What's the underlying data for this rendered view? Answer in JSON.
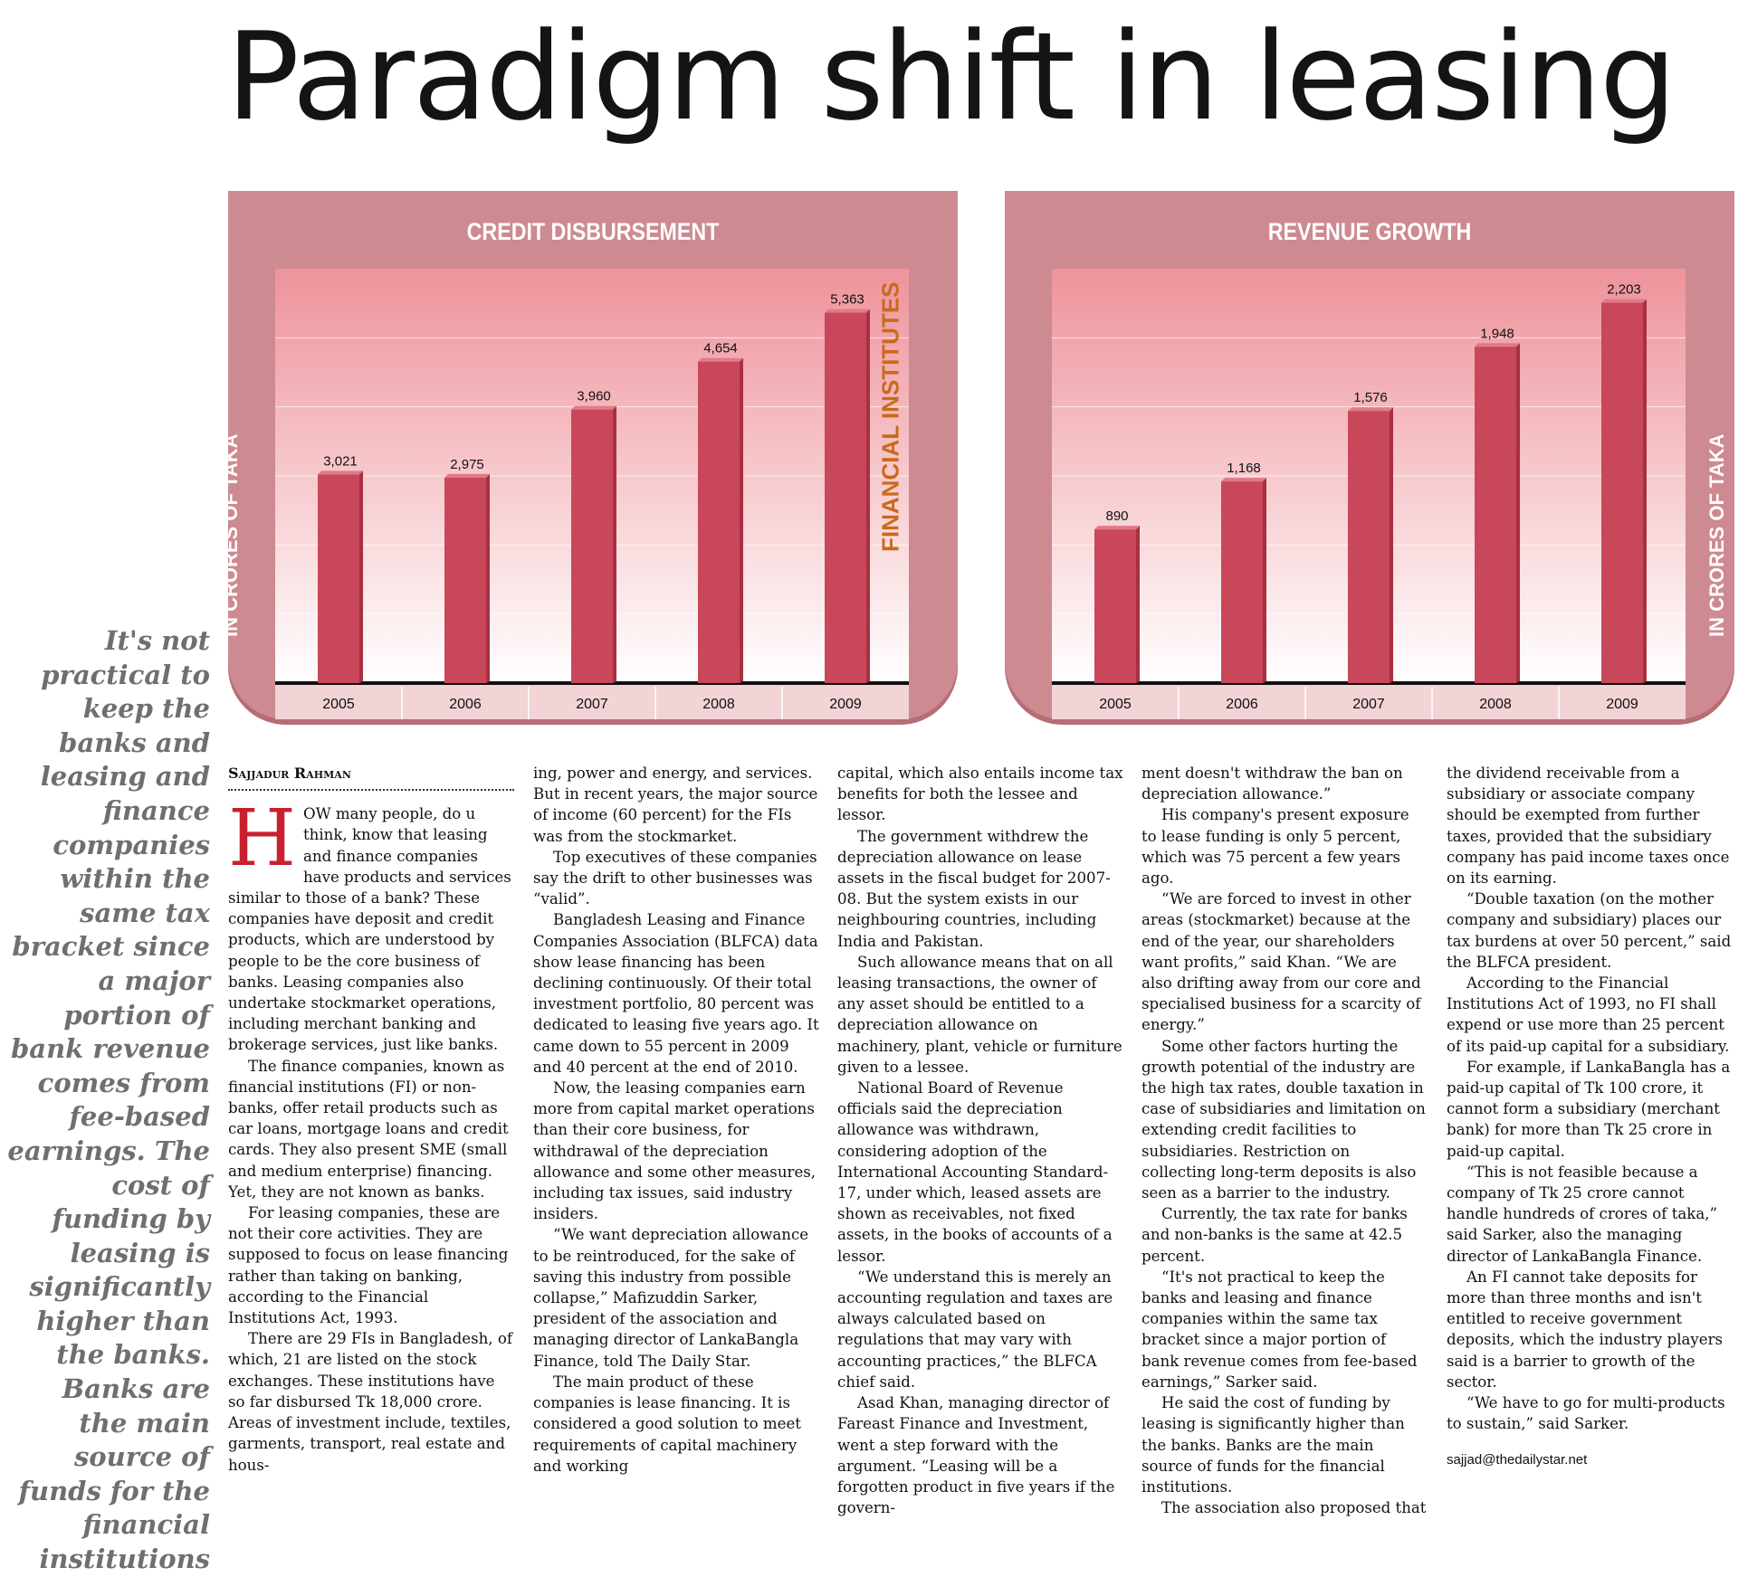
{
  "headline": "Paradigm shift in leasing",
  "middle_label": "FINANCIAL INSTITUTES",
  "pullquote": "It's not practical to keep the banks and leasing and finance companies within the same tax bracket since a major portion of bank revenue comes from fee-based earnings. The cost of funding by leasing is significantly higher than the banks. Banks are the main source of funds for the financial institutions",
  "colors": {
    "panel": "#cd8a91",
    "bar": "#c9475a",
    "accent": "#c8202e",
    "middle_label": "#c96a1a"
  },
  "chart_data": [
    {
      "type": "bar",
      "title": "CREDIT DISBURSEMENT",
      "ylabel": "IN CRORES OF TAKA",
      "categories": [
        "2005",
        "2006",
        "2007",
        "2008",
        "2009"
      ],
      "values": [
        3021,
        2975,
        3960,
        4654,
        5363
      ],
      "value_labels": [
        "3,021",
        "2,975",
        "3,960",
        "4,654",
        "5,363"
      ],
      "ylim": [
        0,
        6000
      ],
      "grid": true
    },
    {
      "type": "bar",
      "title": "REVENUE GROWTH",
      "ylabel": "IN CRORES OF TAKA",
      "categories": [
        "2005",
        "2006",
        "2007",
        "2008",
        "2009"
      ],
      "values": [
        890,
        1168,
        1576,
        1948,
        2203
      ],
      "value_labels": [
        "890",
        "1,168",
        "1,576",
        "1,948",
        "2,203"
      ],
      "ylim": [
        0,
        2400
      ],
      "grid": true
    }
  ],
  "article": {
    "byline": "Sajjadur Rahman",
    "dropcap": "H",
    "email": "sajjad@thedailystar.net",
    "columns": [
      [
        "OW many people, do u think, know that leasing and finance companies have products and services similar to those of a bank? These companies have deposit and credit products, which are understood by people to be the core business of banks. Leasing companies also undertake stockmarket operations, including merchant banking and brokerage services, just like banks.",
        "The finance companies, known as financial institutions (FI) or non-banks, offer retail products such as car loans, mortgage loans and credit cards. They also present SME (small and medium enterprise) financing. Yet, they are not known as banks.",
        "For leasing companies, these are not their core activities. They are supposed to focus on lease financing rather than taking on banking, according to the Financial Institutions Act, 1993.",
        "There are 29 FIs in Bangladesh, of which, 21 are listed on the stock exchanges. These institutions have so far disbursed Tk 18,000 crore. Areas of investment include, textiles, garments, transport, real estate and hous-"
      ],
      [
        "ing, power and energy, and services. But in recent years, the major source of income (60 percent) for the FIs was from the stockmarket.",
        "Top executives of these companies say the drift to other businesses was “valid”.",
        "Bangladesh Leasing and Finance Companies Association (BLFCA) data show lease financing has been declining continuously. Of their total investment portfolio, 80 percent was dedicated to leasing five years ago. It came down to 55 percent in 2009 and 40 percent at the end of 2010.",
        "Now, the leasing companies earn more from capital market operations than their core business, for withdrawal of the depreciation allowance and some other measures, including tax issues, said industry insiders.",
        "“We want depreciation allowance to be reintroduced, for the sake of saving this industry from possible collapse,” Mafizuddin Sarker, president of the association and managing director of LankaBangla Finance, told The Daily Star.",
        "The main product of these companies is lease financing. It is considered a good solution to meet requirements of capital machinery and working"
      ],
      [
        "capital, which also entails income tax benefits for both the lessee and lessor.",
        "The government withdrew the depreciation allowance on lease assets in the fiscal budget for 2007-08. But the system exists in our neighbouring countries, including India and Pakistan.",
        "Such allowance means that on all leasing transactions, the owner of any asset should be entitled to a depreciation allowance on machinery, plant, vehicle or furniture given to a lessee.",
        "National Board of Revenue officials said the depreciation allowance was withdrawn, considering adoption of the International Accounting Standard-17, under which, leased assets are shown as receivables, not fixed assets, in the books of accounts of a lessor.",
        "“We understand this is merely an accounting regulation and taxes are always calculated based on regulations that may vary with accounting practices,” the BLFCA chief said.",
        "Asad Khan, managing director of Fareast Finance and Investment, went a step forward with the argument. “Leasing will be a forgotten product in five years if the govern-"
      ],
      [
        "ment doesn't withdraw the ban on depreciation allowance.”",
        "His company's present exposure to lease funding is only 5 percent, which was 75 percent a few years ago.",
        "“We are forced to invest in other areas (stockmarket) because at the end of the year, our shareholders want profits,” said Khan. “We are also drifting away from our core and specialised business for a scarcity of energy.”",
        "Some other factors hurting the growth potential of the industry are the high tax rates, double taxation in case of subsidiaries and limitation on extending credit facilities to subsidiaries. Restriction on collecting long-term deposits is also seen as a barrier to the industry.",
        "Currently, the tax rate for banks and non-banks is the same at 42.5 percent.",
        "“It's not practical to keep the banks and leasing and finance companies within the same tax bracket since a major portion of bank revenue comes from fee-based earnings,” Sarker said.",
        "He said the cost of funding by leasing is significantly higher than the banks. Banks are the main source of funds for the financial institutions.",
        "The association also proposed that"
      ],
      [
        "the dividend receivable from a subsidiary or associate company should be exempted from further taxes, provided that the subsidiary company has paid income taxes once on its earning.",
        "“Double taxation (on the mother company and subsidiary) places our tax burdens at over 50 percent,” said the BLFCA president.",
        "According to the Financial Institutions Act of 1993, no FI shall expend or use more than 25 percent of its paid-up capital for a subsidiary.",
        "For example, if LankaBangla has a paid-up capital of Tk 100 crore, it cannot form a subsidiary (merchant bank) for more than Tk 25 crore in paid-up capital.",
        "“This is not feasible because a company of Tk 25 crore cannot handle hundreds of crores of taka,” said Sarker, also the managing director of LankaBangla Finance.",
        "An FI cannot take deposits for more than three months and isn't entitled to receive government deposits, which the industry players said is a barrier to growth of the sector.",
        "“We have to go for multi-products to sustain,” said Sarker."
      ]
    ]
  }
}
